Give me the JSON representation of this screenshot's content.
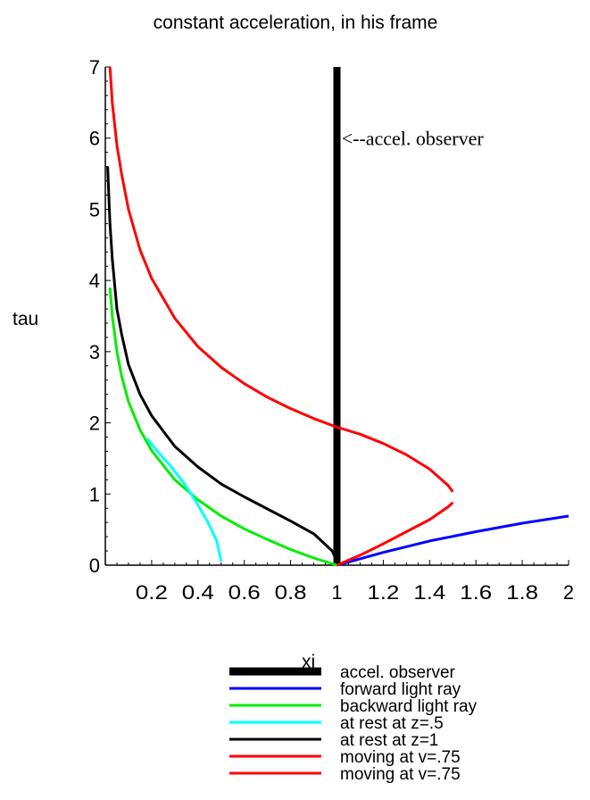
{
  "chart_data": {
    "type": "line",
    "title": "constant acceleration, in his frame",
    "xlabel": "xi",
    "ylabel": "tau",
    "xlim": [
      0,
      2
    ],
    "ylim": [
      0,
      7
    ],
    "x_ticks": [
      {
        "value": 0.2,
        "label": "0.2"
      },
      {
        "value": 0.4,
        "label": "0.4"
      },
      {
        "value": 0.6,
        "label": "0.6"
      },
      {
        "value": 0.8,
        "label": "0.8"
      },
      {
        "value": 1,
        "label": "1"
      },
      {
        "value": 1.2,
        "label": "1.2"
      },
      {
        "value": 1.4,
        "label": "1.4"
      },
      {
        "value": 1.6,
        "label": "1.6"
      },
      {
        "value": 1.8,
        "label": "1.8"
      },
      {
        "value": 2,
        "label": "2"
      }
    ],
    "y_ticks": [
      {
        "value": 0,
        "label": "0"
      },
      {
        "value": 1,
        "label": "1"
      },
      {
        "value": 2,
        "label": "2"
      },
      {
        "value": 3,
        "label": "3"
      },
      {
        "value": 4,
        "label": "4"
      },
      {
        "value": 5,
        "label": "5"
      },
      {
        "value": 6,
        "label": "6"
      },
      {
        "value": 7,
        "label": "7"
      }
    ],
    "annotation": {
      "text": "<--accel. observer",
      "x": 1.02,
      "y": 6.0
    },
    "grid": false,
    "legend_position": "bottom",
    "series": [
      {
        "name": "accel. observer",
        "color": "#000000",
        "thick": true,
        "x": [
          1,
          1
        ],
        "y": [
          0,
          7
        ]
      },
      {
        "name": "forward light ray",
        "color": "#0000ff",
        "thick": false,
        "x": [
          1.0,
          1.2,
          1.4,
          1.6,
          1.8,
          2.0
        ],
        "y": [
          0.0,
          0.18,
          0.34,
          0.47,
          0.59,
          0.69
        ]
      },
      {
        "name": "backward light ray",
        "color": "#00ee00",
        "thick": false,
        "x": [
          1.0,
          0.9,
          0.8,
          0.7,
          0.6,
          0.5,
          0.4,
          0.3,
          0.2,
          0.15,
          0.1,
          0.07,
          0.05,
          0.03,
          0.02
        ],
        "y": [
          0.0,
          0.1,
          0.22,
          0.36,
          0.51,
          0.69,
          0.92,
          1.2,
          1.61,
          1.9,
          2.3,
          2.66,
          3.0,
          3.5,
          3.9
        ]
      },
      {
        "name": "at rest at z=.5",
        "color": "#00ffff",
        "thick": false,
        "x": [
          0.5,
          0.48,
          0.44,
          0.39,
          0.34,
          0.28,
          0.22,
          0.18
        ],
        "y": [
          0.05,
          0.35,
          0.62,
          0.9,
          1.15,
          1.4,
          1.62,
          1.78
        ]
      },
      {
        "name": "at rest at z=1",
        "color": "#000000",
        "thick": false,
        "x": [
          1.0,
          0.98,
          0.9,
          0.8,
          0.7,
          0.6,
          0.5,
          0.4,
          0.3,
          0.2,
          0.15,
          0.1,
          0.07,
          0.05,
          0.03,
          0.02,
          0.01
        ],
        "y": [
          0.05,
          0.2,
          0.44,
          0.62,
          0.79,
          0.96,
          1.14,
          1.38,
          1.67,
          2.1,
          2.4,
          2.82,
          3.25,
          3.6,
          4.3,
          4.8,
          5.6
        ]
      },
      {
        "name": "moving at v=.75",
        "color": "#ff0000",
        "thick": false,
        "x": [
          1.0,
          1.1,
          1.2,
          1.3,
          1.4,
          1.48,
          1.5
        ],
        "y": [
          0.0,
          0.14,
          0.3,
          0.47,
          0.64,
          0.82,
          0.88
        ]
      },
      {
        "name": "moving at v=.75",
        "color": "#ff0000",
        "thick": false,
        "x": [
          1.5,
          1.48,
          1.4,
          1.3,
          1.2,
          1.1,
          1.0,
          0.9,
          0.8,
          0.7,
          0.6,
          0.5,
          0.4,
          0.3,
          0.2,
          0.15,
          0.1,
          0.07,
          0.05,
          0.03,
          0.02
        ],
        "y": [
          1.03,
          1.12,
          1.35,
          1.55,
          1.71,
          1.84,
          1.94,
          2.06,
          2.2,
          2.36,
          2.55,
          2.78,
          3.07,
          3.47,
          4.03,
          4.43,
          5.0,
          5.5,
          5.9,
          6.5,
          7.0
        ]
      }
    ]
  }
}
